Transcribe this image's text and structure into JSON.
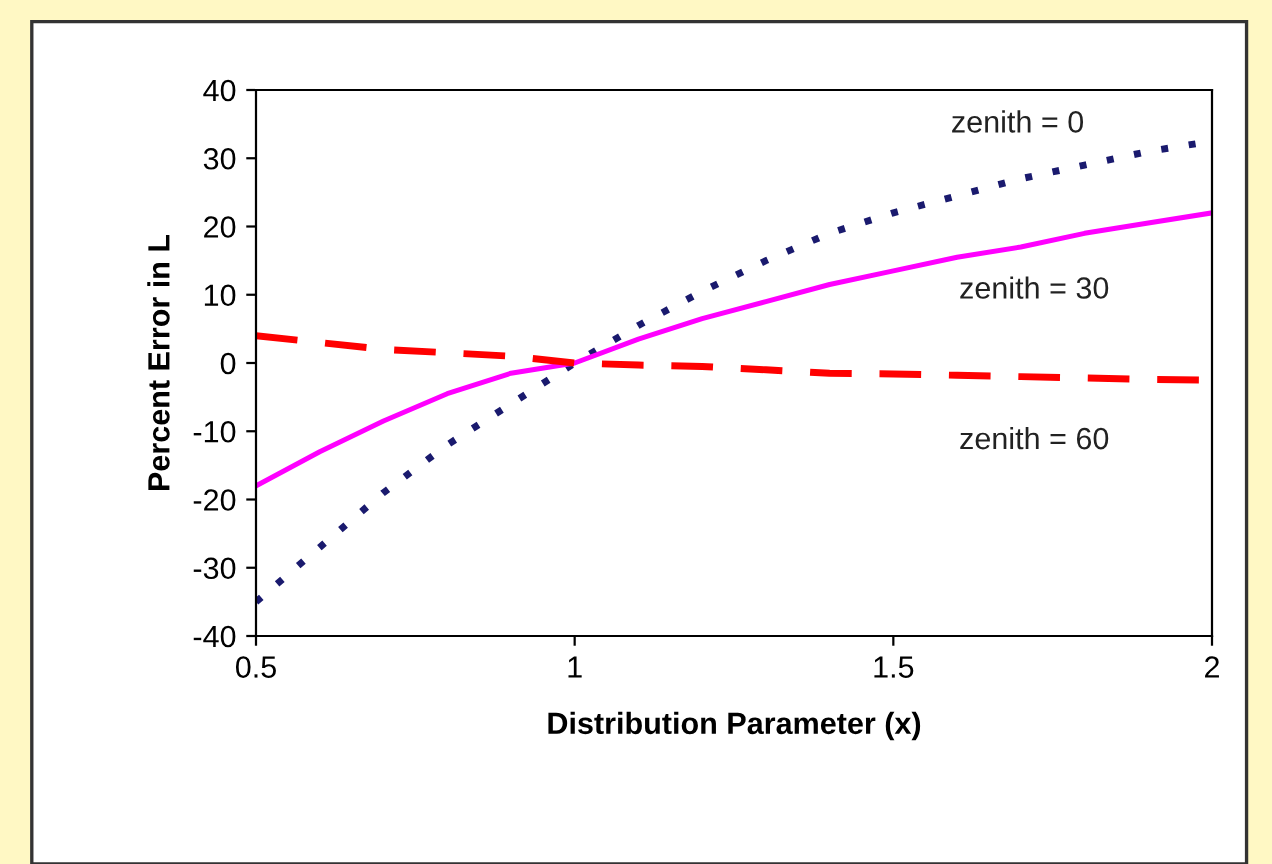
{
  "chart_data": {
    "type": "line",
    "xlabel": "Distribution Parameter (x)",
    "ylabel": "Percent Error in L",
    "x": [
      0.5,
      0.6,
      0.7,
      0.8,
      0.9,
      1.0,
      1.1,
      1.2,
      1.3,
      1.4,
      1.5,
      1.6,
      1.7,
      1.8,
      1.9,
      2.0
    ],
    "series": [
      {
        "name": "zenith = 0",
        "color": "#1a1a6e",
        "line_style": "dotted",
        "values": [
          -35,
          -27,
          -19,
          -12,
          -6,
          0,
          5.5,
          10.5,
          15,
          19,
          22,
          24.5,
          27,
          29,
          31,
          32.5
        ]
      },
      {
        "name": "zenith = 30",
        "color": "#ff00ff",
        "line_style": "solid",
        "values": [
          -18,
          -13,
          -8.5,
          -4.5,
          -1.5,
          0,
          3.5,
          6.5,
          9,
          11.5,
          13.5,
          15.5,
          17,
          19,
          20.5,
          22
        ]
      },
      {
        "name": "zenith = 60",
        "color": "#ff0000",
        "line_style": "dashed",
        "values": [
          4,
          3,
          2,
          1.5,
          1,
          0,
          -0.3,
          -0.5,
          -1,
          -1.5,
          -1.6,
          -1.8,
          -2,
          -2.2,
          -2.4,
          -2.5
        ]
      }
    ],
    "xlim": [
      0.5,
      2
    ],
    "xticks": [
      0.5,
      1,
      1.5,
      2
    ],
    "ylim": [
      -40,
      40
    ],
    "yticks": [
      -40,
      -30,
      -20,
      -10,
      0,
      10,
      20,
      30,
      40
    ],
    "grid": false,
    "legend": false,
    "marker": "none"
  }
}
